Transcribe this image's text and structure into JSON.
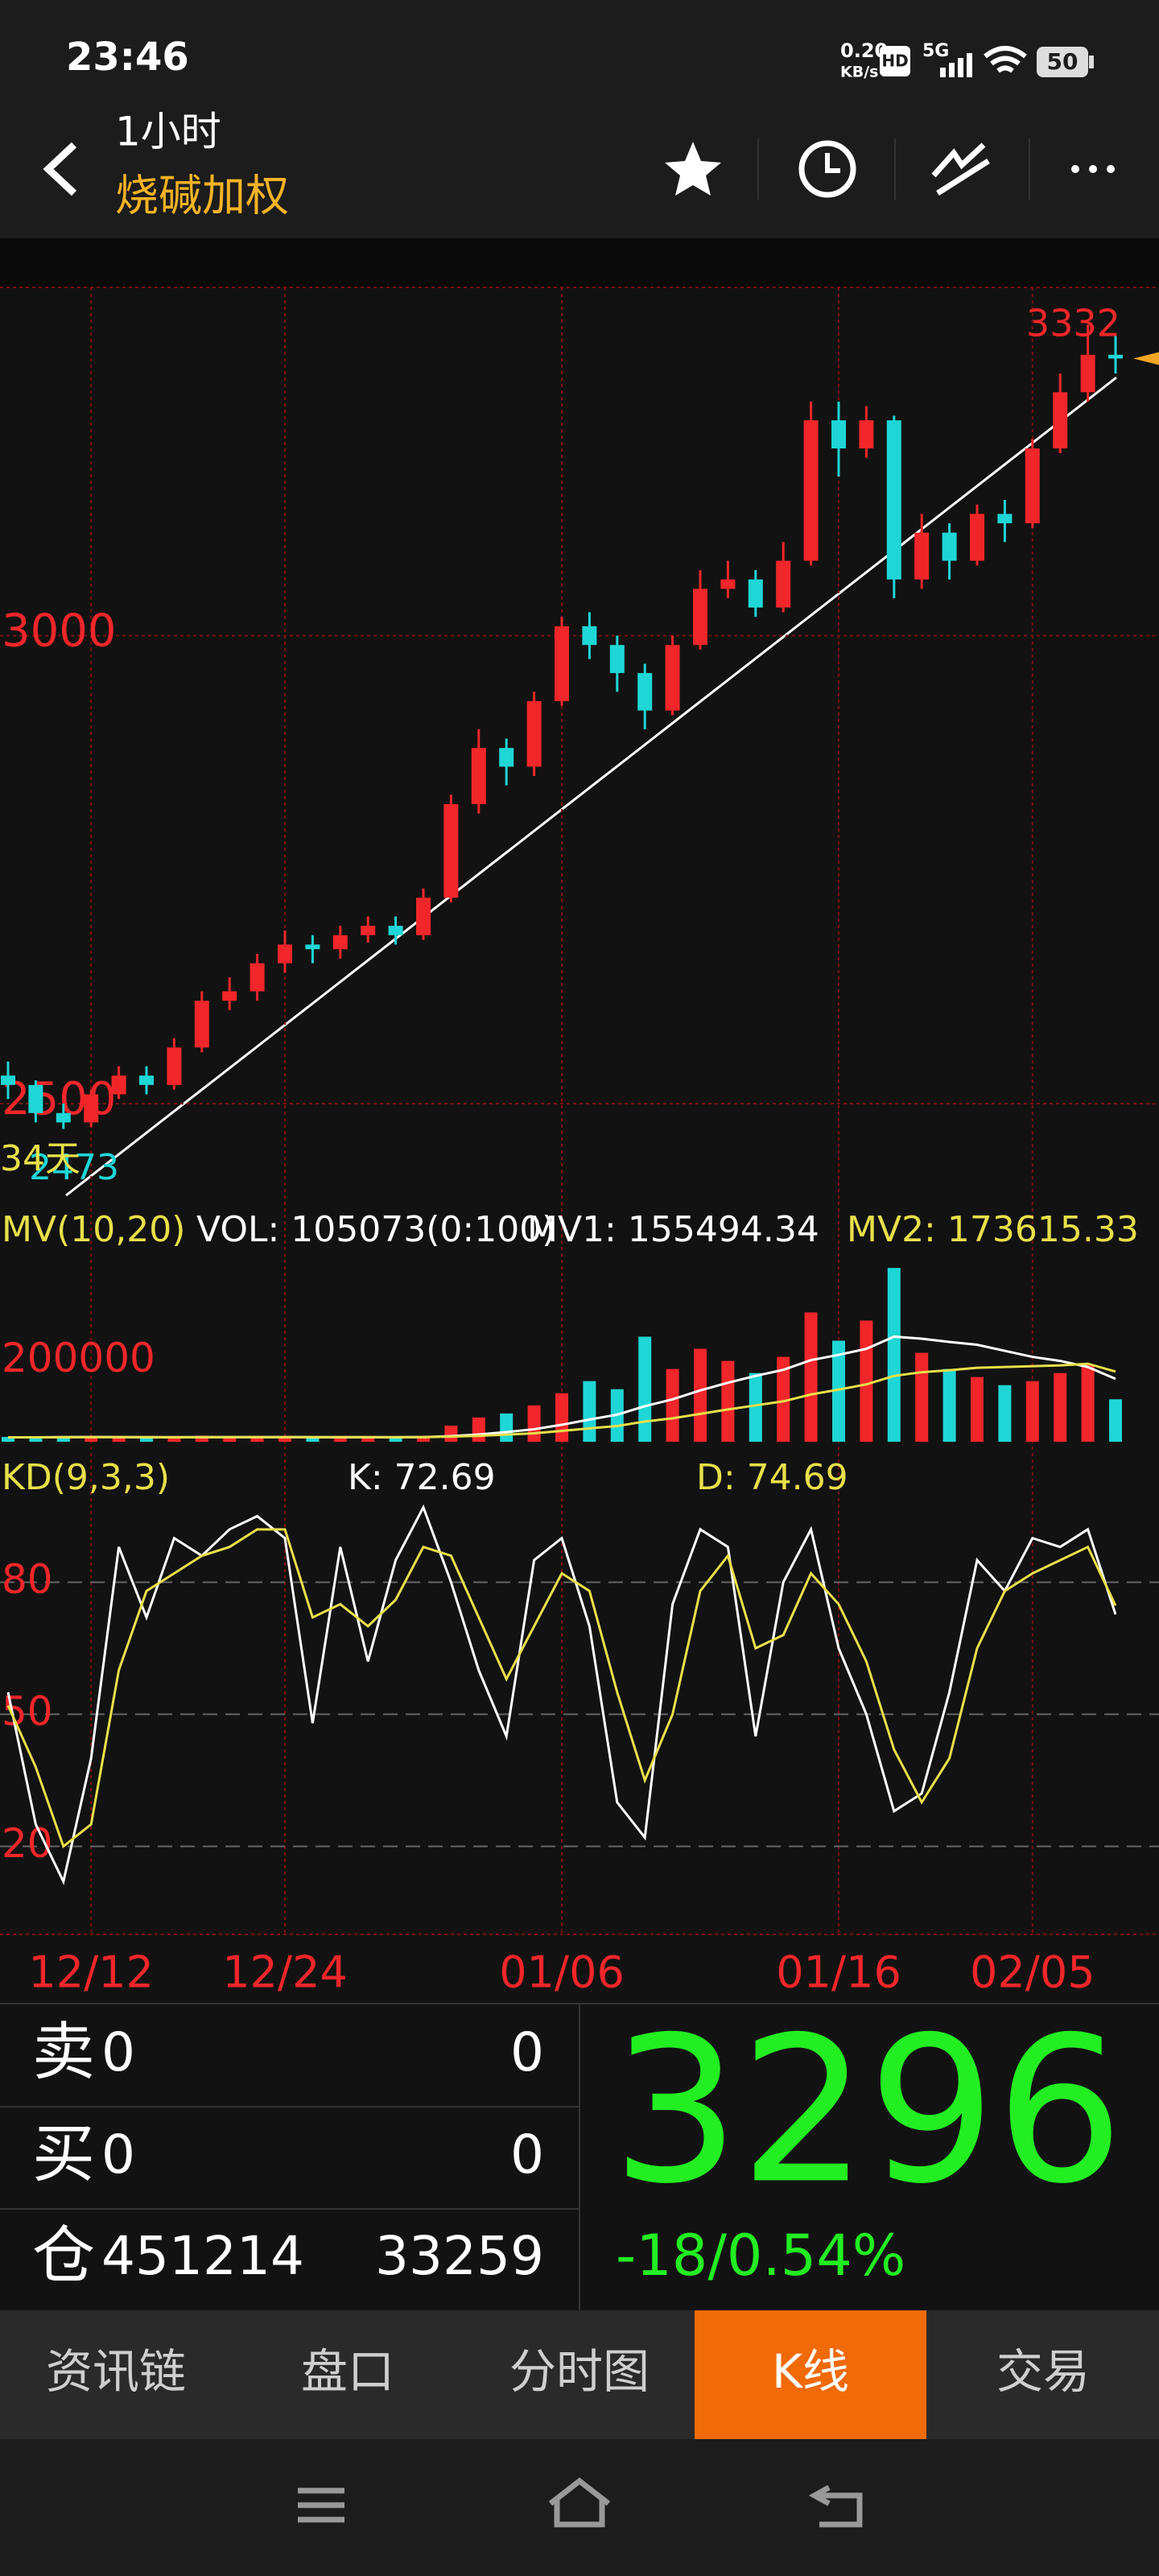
{
  "status_bar": {
    "time": "23:46",
    "net_speed": "0.20",
    "net_unit": "KB/s",
    "badges": [
      "HD",
      "5G"
    ],
    "battery": "50"
  },
  "header": {
    "period": "1小时",
    "symbol": "烧碱加权"
  },
  "chart_data": [
    {
      "type": "candlestick",
      "x": [
        null,
        null,
        null,
        "12/12",
        null,
        null,
        null,
        null,
        null,
        null,
        "12/24",
        null,
        null,
        null,
        null,
        null,
        null,
        null,
        null,
        null,
        "01/06",
        null,
        null,
        null,
        null,
        null,
        null,
        null,
        null,
        null,
        "01/16",
        null,
        null,
        null,
        null,
        null,
        null,
        "02/05",
        null,
        null,
        null
      ],
      "open": [
        2530,
        2520,
        2490,
        2480,
        2510,
        2530,
        2520,
        2560,
        2610,
        2620,
        2650,
        2670,
        2665,
        2680,
        2690,
        2680,
        2720,
        2820,
        2880,
        2860,
        2930,
        3010,
        2990,
        2960,
        2920,
        2990,
        3050,
        3060,
        3030,
        3080,
        3230,
        3200,
        3230,
        3060,
        3110,
        3080,
        3130,
        3120,
        3200,
        3260,
        3300
      ],
      "close": [
        2520,
        2490,
        2480,
        2510,
        2530,
        2520,
        2560,
        2610,
        2620,
        2650,
        2670,
        2665,
        2680,
        2690,
        2680,
        2720,
        2820,
        2880,
        2860,
        2930,
        3010,
        2990,
        2960,
        2920,
        2990,
        3050,
        3060,
        3030,
        3080,
        3230,
        3200,
        3230,
        3060,
        3110,
        3080,
        3130,
        3120,
        3200,
        3260,
        3300,
        3296
      ],
      "high": [
        2545,
        2525,
        2500,
        2515,
        2540,
        2540,
        2570,
        2620,
        2635,
        2660,
        2685,
        2680,
        2690,
        2700,
        2700,
        2730,
        2830,
        2900,
        2890,
        2940,
        3020,
        3025,
        3000,
        2970,
        3000,
        3070,
        3080,
        3070,
        3100,
        3250,
        3250,
        3245,
        3235,
        3130,
        3120,
        3140,
        3145,
        3210,
        3280,
        3332,
        3320
      ],
      "low": [
        2505,
        2480,
        2473,
        2475,
        2505,
        2510,
        2515,
        2555,
        2600,
        2610,
        2640,
        2650,
        2655,
        2672,
        2670,
        2675,
        2715,
        2810,
        2840,
        2850,
        2925,
        2975,
        2940,
        2900,
        2915,
        2985,
        3040,
        3020,
        3025,
        3075,
        3170,
        3190,
        3040,
        3050,
        3060,
        3075,
        3100,
        3115,
        3195,
        3250,
        3280
      ],
      "up_color": "#f0262a",
      "down_color": "#1fd6d6",
      "ylim": [
        2402,
        3372
      ],
      "yticks": [
        2500,
        3000
      ],
      "grid": true,
      "max_label": 3332,
      "min_label": 2473,
      "span_label": "34天"
    },
    {
      "type": "bar",
      "title": "MV(10,20)",
      "series": [
        {
          "name": "VOL: 105073(0:100)",
          "color": "#ffffff",
          "values": [
            12000,
            10000,
            14000,
            11000,
            9000,
            10000,
            12000,
            15000,
            11000,
            10000,
            12000,
            9000,
            10000,
            11000,
            9000,
            14000,
            40000,
            60000,
            70000,
            90000,
            120000,
            150000,
            130000,
            260000,
            180000,
            230000,
            200000,
            170000,
            210000,
            320000,
            250000,
            300000,
            430000,
            220000,
            180000,
            160000,
            140000,
            150000,
            170000,
            190000,
            105073
          ]
        },
        {
          "name": "MV1: 155494.34",
          "type": "line",
          "color": "#ffffff",
          "values": [
            11000,
            11000,
            11500,
            11800,
            11500,
            11200,
            11300,
            11500,
            11500,
            11400,
            11500,
            11300,
            11200,
            11300,
            11200,
            11500,
            14000,
            18000,
            24000,
            31000,
            42000,
            55000,
            67000,
            88000,
            105000,
            127000,
            146000,
            163000,
            178000,
            202000,
            215000,
            230000,
            260000,
            255000,
            247000,
            240000,
            225000,
            210000,
            200000,
            185000,
            155494.34
          ]
        },
        {
          "name": "MV2: 173615.33",
          "type": "line",
          "color": "#e8e04a",
          "values": [
            11000,
            11000,
            11200,
            11400,
            11500,
            11400,
            11300,
            11300,
            11400,
            11400,
            11400,
            11400,
            11400,
            11400,
            11300,
            11400,
            12800,
            14800,
            17700,
            21000,
            27000,
            33000,
            39000,
            50000,
            58000,
            69000,
            80000,
            90000,
            100000,
            117000,
            129000,
            142000,
            163000,
            172000,
            177000,
            183000,
            185000,
            187000,
            189000,
            193000,
            173615.33
          ]
        }
      ],
      "ylim": [
        0,
        480000
      ],
      "yticks": [
        200000
      ]
    },
    {
      "type": "line",
      "title": "KD(9,3,3)",
      "series": [
        {
          "name": "K: 72.69",
          "color": "#ffffff",
          "values": [
            55,
            25,
            12,
            40,
            88,
            72,
            90,
            86,
            92,
            95,
            90,
            48,
            88,
            62,
            85,
            97,
            80,
            60,
            45,
            85,
            90,
            70,
            30,
            22,
            75,
            92,
            88,
            45,
            80,
            92,
            65,
            50,
            28,
            32,
            55,
            85,
            78,
            90,
            88,
            92,
            72.69
          ]
        },
        {
          "name": "D: 74.69",
          "color": "#e8e04a",
          "values": [
            52,
            38,
            20,
            25,
            60,
            78,
            82,
            86,
            88,
            92,
            92,
            72,
            75,
            70,
            76,
            88,
            86,
            72,
            58,
            70,
            82,
            78,
            55,
            35,
            50,
            78,
            86,
            65,
            68,
            82,
            75,
            62,
            42,
            30,
            40,
            65,
            78,
            82,
            85,
            88,
            74.69
          ]
        }
      ],
      "ylim": [
        0,
        98
      ],
      "yticks": [
        20,
        50,
        80
      ],
      "grid": true
    }
  ],
  "quote": {
    "rows": [
      {
        "label": "卖",
        "left": 0,
        "right": 0
      },
      {
        "label": "买",
        "left": 0,
        "right": 0
      },
      {
        "label": "仓",
        "left": 451214,
        "right": 33259
      }
    ],
    "last": 3296,
    "change": "-18/0.54%"
  },
  "tabs": [
    "资讯链",
    "盘口",
    "分时图",
    "K线",
    "交易"
  ],
  "active_tab": 3
}
